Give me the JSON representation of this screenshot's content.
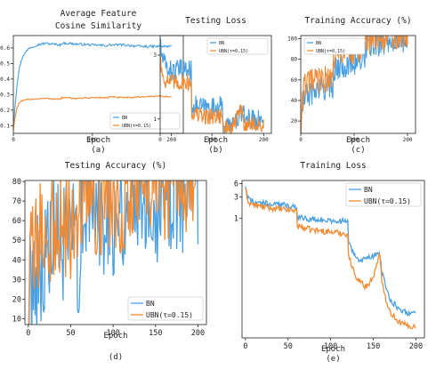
{
  "colors": {
    "bn": "#4a9fe0",
    "ubn": "#f28a33"
  },
  "chart_data": [
    {
      "id": "a",
      "type": "line",
      "title": [
        "Average Feature",
        "Cosine Similarity"
      ],
      "xlabel": "Epoch",
      "ylabel": "",
      "caption": "(a)",
      "xlim": [
        0,
        215
      ],
      "ylim": [
        0.05,
        0.68
      ],
      "xticks": [
        0,
        100,
        200
      ],
      "yticks": [
        0.1,
        0.2,
        0.3,
        0.4,
        0.5,
        0.6
      ],
      "yscale": "linear",
      "legend_position": "lower-right",
      "series": [
        {
          "name": "BN",
          "color_key": "bn",
          "x": [
            0,
            2,
            5,
            8,
            12,
            20,
            30,
            40,
            50,
            60,
            61,
            70,
            80,
            100,
            120,
            121,
            140,
            160,
            180,
            200
          ],
          "y": [
            0.1,
            0.22,
            0.38,
            0.48,
            0.55,
            0.6,
            0.62,
            0.63,
            0.625,
            0.62,
            0.63,
            0.63,
            0.625,
            0.62,
            0.615,
            0.62,
            0.62,
            0.61,
            0.61,
            0.61
          ],
          "noise": 0.012
        },
        {
          "name": "UBN(τ=0.15)",
          "color_key": "ubn",
          "x": [
            0,
            2,
            5,
            8,
            12,
            20,
            40,
            60,
            61,
            80,
            100,
            120,
            121,
            140,
            160,
            180,
            200
          ],
          "y": [
            0.07,
            0.15,
            0.22,
            0.25,
            0.26,
            0.27,
            0.275,
            0.27,
            0.28,
            0.275,
            0.28,
            0.28,
            0.285,
            0.28,
            0.285,
            0.29,
            0.285
          ],
          "noise": 0.007
        }
      ]
    },
    {
      "id": "b",
      "type": "line",
      "title": [
        "Testing Loss"
      ],
      "xlabel": "Epoch",
      "ylabel": "",
      "caption": "(b)",
      "xlim": [
        0,
        215
      ],
      "ylim": [
        0.78,
        4.2
      ],
      "xticks": [
        0,
        100,
        200
      ],
      "yticks": [
        1,
        3
      ],
      "yscale": "log",
      "legend_position": "upper-right",
      "series": [
        {
          "name": "BN",
          "color_key": "bn",
          "x": [
            0,
            2,
            5,
            10,
            20,
            30,
            45,
            60,
            61,
            70,
            80,
            100,
            115,
            120,
            121,
            130,
            140,
            150,
            155,
            160,
            170,
            180,
            190,
            200
          ],
          "y": [
            3.8,
            3.1,
            2.8,
            2.5,
            2.3,
            2.3,
            2.35,
            2.3,
            1.3,
            1.25,
            1.22,
            1.2,
            1.25,
            1.2,
            0.92,
            0.88,
            0.9,
            1.0,
            1.12,
            1.05,
            1.0,
            1.0,
            0.98,
            0.97
          ],
          "noise": 0.06
        },
        {
          "name": "UBN(τ=0.15)",
          "color_key": "ubn",
          "x": [
            0,
            2,
            5,
            10,
            20,
            30,
            45,
            60,
            61,
            70,
            80,
            100,
            115,
            120,
            121,
            130,
            140,
            150,
            155,
            157,
            160,
            170,
            180,
            190,
            200
          ],
          "y": [
            3.2,
            2.4,
            2.1,
            1.95,
            1.9,
            1.85,
            1.9,
            1.85,
            1.12,
            1.08,
            1.05,
            1.05,
            1.07,
            1.05,
            0.85,
            0.85,
            0.85,
            1.05,
            1.18,
            1.2,
            0.95,
            0.92,
            0.91,
            0.9,
            0.9
          ],
          "noise": 0.05
        }
      ]
    },
    {
      "id": "c",
      "type": "line",
      "title": [
        "Training Accuracy (%)"
      ],
      "xlabel": "Epoch",
      "ylabel": "",
      "caption": "(c)",
      "xlim": [
        0,
        215
      ],
      "ylim": [
        8,
        103
      ],
      "xticks": [
        0,
        100,
        200
      ],
      "yticks": [
        20,
        40,
        60,
        80,
        100
      ],
      "yscale": "linear",
      "legend_position": "upper-left",
      "series": [
        {
          "name": "BN",
          "color_key": "bn",
          "x": [
            0,
            3,
            6,
            10,
            20,
            40,
            60,
            61,
            80,
            100,
            120,
            121,
            140,
            150,
            160,
            170,
            200
          ],
          "y": [
            10,
            30,
            40,
            44,
            48,
            52,
            55,
            70,
            75,
            78,
            80,
            93,
            95,
            96,
            98,
            100,
            100
          ],
          "noise": 0.4
        },
        {
          "name": "UBN(τ=0.15)",
          "color_key": "ubn",
          "x": [
            0,
            3,
            6,
            10,
            20,
            40,
            60,
            61,
            80,
            100,
            120,
            121,
            140,
            150,
            160,
            170,
            200
          ],
          "y": [
            10,
            40,
            52,
            56,
            58,
            60,
            61,
            82,
            86,
            88,
            89,
            97,
            98,
            99,
            99.5,
            100,
            100
          ],
          "noise": 0.4
        }
      ]
    },
    {
      "id": "d",
      "type": "line",
      "title": [
        "Testing Accuracy (%)"
      ],
      "xlabel": "Epoch",
      "ylabel": "",
      "caption": "(d)",
      "xlim": [
        -4,
        210
      ],
      "ylim": [
        7,
        80.5
      ],
      "xticks": [
        0,
        50,
        100,
        150,
        200
      ],
      "yticks": [
        10,
        20,
        30,
        40,
        50,
        60,
        70,
        80
      ],
      "yscale": "linear",
      "legend_position": "lower-right",
      "series": [
        {
          "name": "BN",
          "color_key": "bn",
          "x": [
            0,
            2,
            4,
            8,
            12,
            20,
            30,
            40,
            50,
            55,
            60,
            61,
            62,
            70,
            80,
            100,
            110,
            119,
            120,
            121,
            122,
            130,
            140,
            150,
            152,
            155,
            158,
            160,
            165,
            170,
            180,
            190,
            200
          ],
          "y": [
            12,
            24,
            30,
            36,
            38,
            42,
            46,
            47,
            47,
            45,
            44,
            66,
            70,
            66,
            67,
            66,
            66,
            66,
            66,
            75,
            77,
            76.5,
            75,
            73.5,
            73,
            72.5,
            75,
            77,
            77,
            77,
            77.5,
            77.5,
            77.5
          ],
          "noise": 1.4
        },
        {
          "name": "UBN(τ=0.15)",
          "color_key": "ubn",
          "x": [
            0,
            2,
            4,
            8,
            12,
            20,
            30,
            40,
            50,
            55,
            60,
            61,
            62,
            70,
            80,
            100,
            110,
            119,
            120,
            121,
            122,
            130,
            140,
            150,
            155,
            157,
            160,
            165,
            170,
            180,
            190,
            200
          ],
          "y": [
            15,
            35,
            42,
            48,
            51,
            53,
            55,
            56,
            57,
            57,
            57,
            73,
            74,
            71,
            70.5,
            70.5,
            71,
            71,
            71,
            77,
            78,
            78,
            77.5,
            77,
            76,
            75.5,
            77.5,
            78,
            78,
            78.5,
            78.5,
            78.5
          ],
          "noise": 1.1
        }
      ]
    },
    {
      "id": "e",
      "type": "line",
      "title": [
        "Training Loss"
      ],
      "xlabel": "Epoch",
      "ylabel": "",
      "caption": "(e)",
      "xlim": [
        -4,
        210
      ],
      "ylim": [
        0.0022,
        7
      ],
      "xticks": [
        0,
        50,
        100,
        150,
        200
      ],
      "yticks": [
        1,
        3,
        6
      ],
      "yscale": "log",
      "legend_position": "upper-right",
      "series": [
        {
          "name": "BN",
          "color_key": "bn",
          "x": [
            0,
            2,
            5,
            10,
            20,
            30,
            40,
            50,
            60,
            61,
            70,
            80,
            100,
            110,
            119,
            120,
            121,
            125,
            130,
            135,
            140,
            145,
            150,
            155,
            158,
            160,
            165,
            170,
            180,
            190,
            200
          ],
          "y": [
            5.5,
            3.0,
            2.6,
            2.4,
            2.2,
            2.1,
            2.0,
            1.95,
            1.9,
            1.1,
            1.0,
            0.95,
            0.9,
            0.88,
            0.85,
            0.85,
            0.3,
            0.2,
            0.14,
            0.12,
            0.12,
            0.13,
            0.15,
            0.17,
            0.15,
            0.06,
            0.025,
            0.015,
            0.01,
            0.008,
            0.008
          ],
          "noise": 0.05
        },
        {
          "name": "UBN(τ=0.15)",
          "color_key": "ubn",
          "x": [
            0,
            2,
            5,
            10,
            20,
            30,
            40,
            50,
            60,
            61,
            70,
            80,
            100,
            110,
            119,
            120,
            121,
            125,
            130,
            140,
            145,
            150,
            155,
            157,
            158,
            160,
            165,
            170,
            180,
            190,
            200
          ],
          "y": [
            5.0,
            2.7,
            2.2,
            2.0,
            1.8,
            1.7,
            1.6,
            1.55,
            1.5,
            0.7,
            0.6,
            0.55,
            0.5,
            0.48,
            0.45,
            0.45,
            0.15,
            0.08,
            0.05,
            0.03,
            0.035,
            0.05,
            0.1,
            0.15,
            0.12,
            0.04,
            0.015,
            0.008,
            0.005,
            0.004,
            0.004
          ],
          "noise": 0.05
        }
      ]
    }
  ]
}
